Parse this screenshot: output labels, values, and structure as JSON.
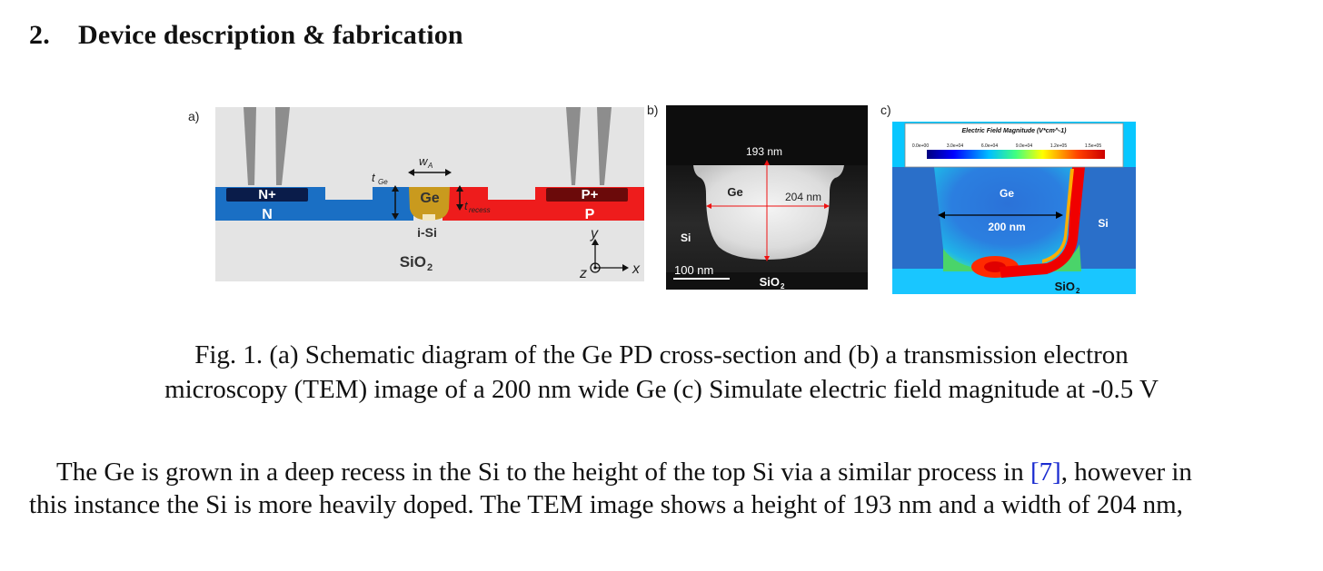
{
  "section": {
    "number": "2.",
    "title": "Device description & fabrication"
  },
  "figure": {
    "panel_a": {
      "label": "a)",
      "n_plus": "N+",
      "n": "N",
      "p_plus": "P+",
      "p": "P",
      "ge": "Ge",
      "i_si": "i-Si",
      "sio2": "SiO",
      "sio2_sub": "2",
      "t_ge": "t",
      "t_ge_sub": "Ge",
      "w_a": "w",
      "w_a_sub": "A",
      "t_recess": "t",
      "t_recess_sub": "recess",
      "axis_y": "y",
      "axis_z": "z",
      "axis_x": "x"
    },
    "panel_b": {
      "label": "b)",
      "height": "193 nm",
      "ge": "Ge",
      "width": "204 nm",
      "si": "Si",
      "scale": "100 nm",
      "sio2": "SiO",
      "sio2_sub": "2"
    },
    "panel_c": {
      "label": "c)",
      "colorbar_title": "Electric Field Magnitude (V*cm^-1)",
      "ticks": [
        "0.0e+00",
        "3.0e+04",
        "6.0e+04",
        "9.0e+04",
        "1.2e+05",
        "1.5e+05"
      ],
      "ge": "Ge",
      "width": "200 nm",
      "si": "Si",
      "sio2": "SiO",
      "sio2_sub": "2"
    }
  },
  "caption": {
    "line1": "Fig. 1. (a) Schematic diagram of the Ge PD cross-section and (b) a transmission electron",
    "line2": "microscopy (TEM) image of a 200 nm wide Ge (c) Simulate electric field magnitude at -0.5 V"
  },
  "paragraph": {
    "part1": "The Ge is grown in a deep recess in the Si to the height of the top Si via a similar process in ",
    "ref": "[7]",
    "part2": ", however in",
    "line2": "this instance the Si is more heavily doped. The TEM image shows a height of 193 nm and a width of 204 nm,"
  },
  "colors": {
    "n_region": "#1a6fc4",
    "p_region": "#ee1c1c",
    "ge": "#c99a1e",
    "link": "#1a2bd0"
  }
}
